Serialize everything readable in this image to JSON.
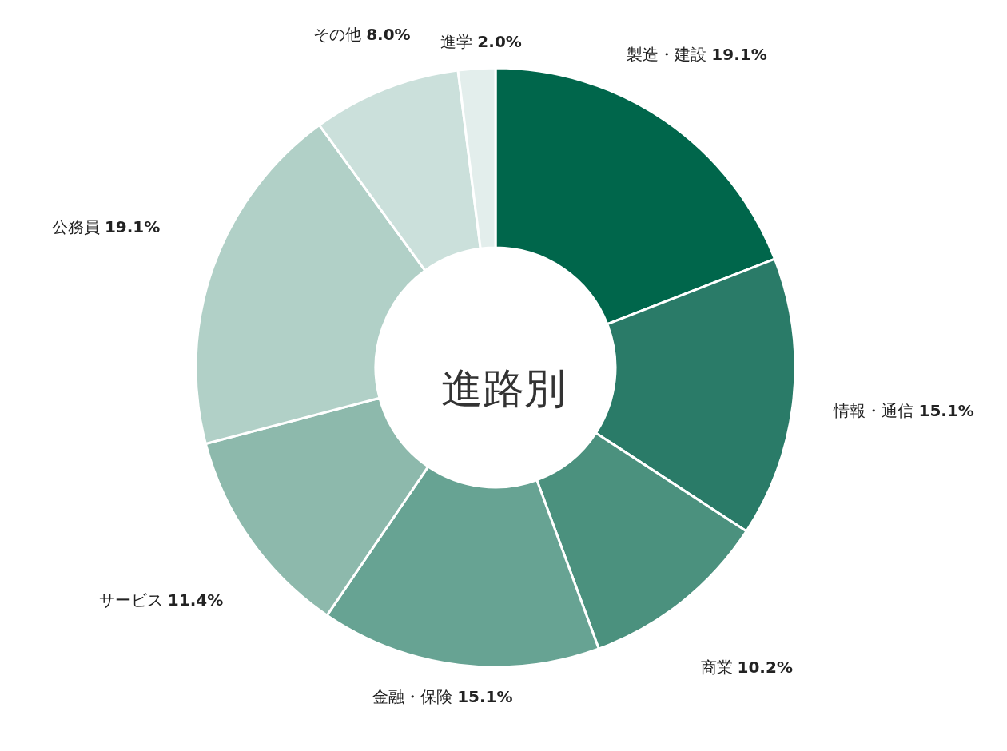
{
  "chart_data": {
    "type": "donut",
    "title": "進路別",
    "categories": [
      "製造・建設",
      "情報・通信",
      "商業",
      "金融・保険",
      "サービス",
      "公務員",
      "その他",
      "進学"
    ],
    "values": [
      19.1,
      15.1,
      10.2,
      15.1,
      11.4,
      19.1,
      8.0,
      2.0
    ],
    "value_labels": [
      "19.1%",
      "15.1%",
      "10.2%",
      "15.1%",
      "11.4%",
      "19.1%",
      "8.0%",
      "2.0%"
    ],
    "colors": [
      "#00664b",
      "#2a7b68",
      "#4b917e",
      "#67a393",
      "#8db9ac",
      "#b1d0c7",
      "#cbe0db",
      "#e3eeec"
    ],
    "legend": false
  }
}
